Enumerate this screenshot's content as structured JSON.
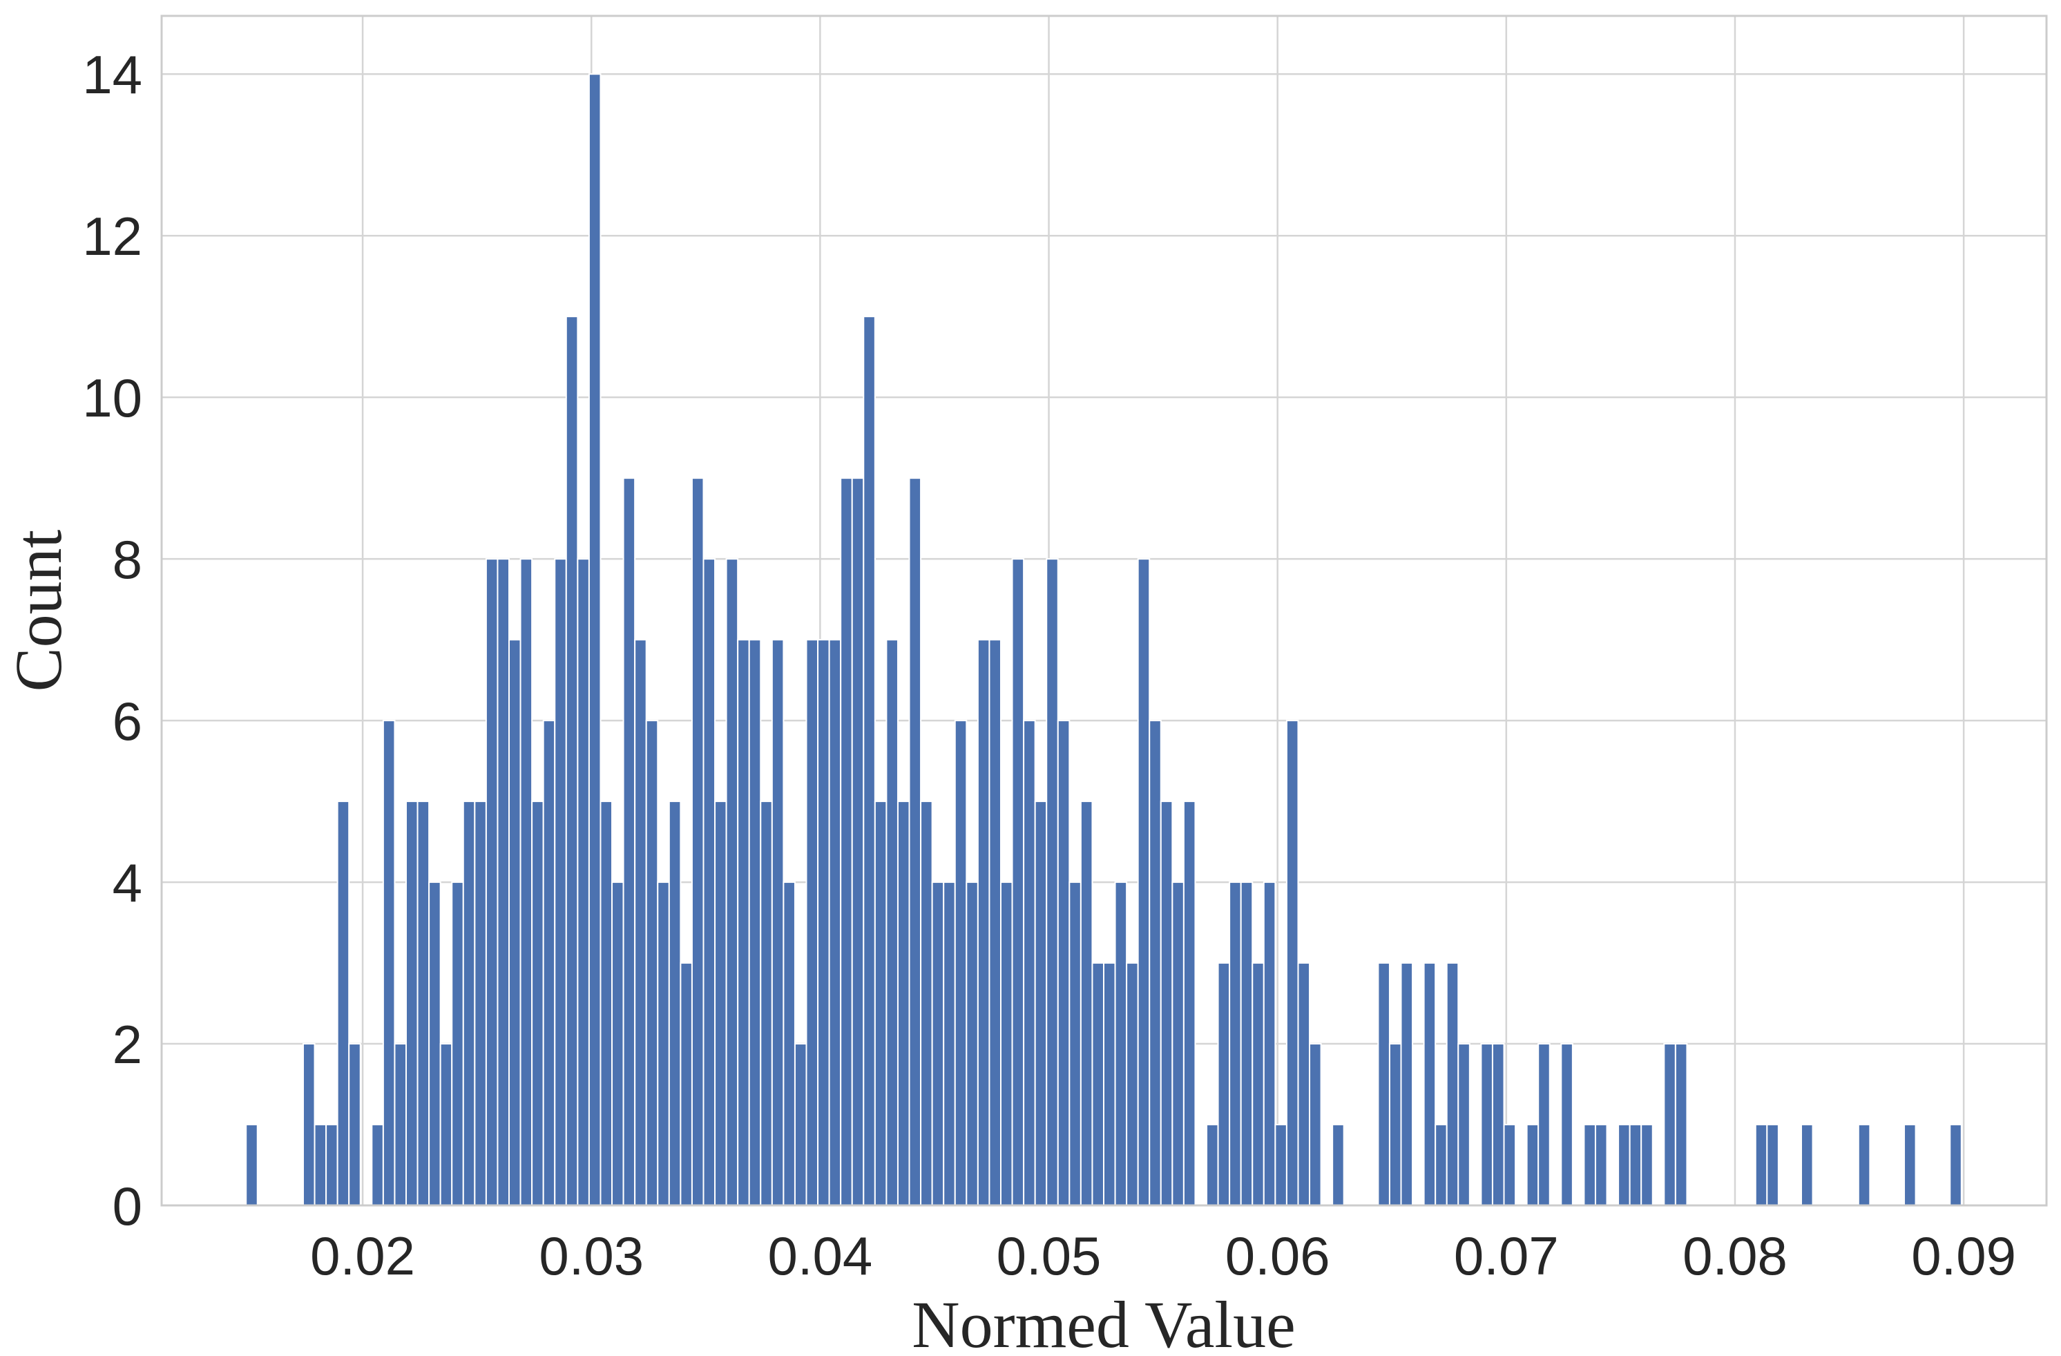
{
  "chart_data": {
    "type": "histogram",
    "xlabel": "Normed Value",
    "ylabel": "Count",
    "color": "#4c72b0",
    "grid": true,
    "xlim": [
      0.01121,
      0.09362
    ],
    "ylim": [
      0,
      14.72
    ],
    "xticks": [
      0.02,
      0.03,
      0.04,
      0.05,
      0.06,
      0.07,
      0.08,
      0.09
    ],
    "yticks": [
      0,
      2,
      4,
      6,
      8,
      10,
      12,
      14
    ],
    "bins": [
      0.0149,
      0.0154,
      0.0159,
      0.0164,
      0.0169,
      0.0174,
      0.0179,
      0.0184,
      0.0189,
      0.0194,
      0.0199,
      0.0204,
      0.0209,
      0.0214,
      0.0219,
      0.0224,
      0.0229,
      0.0234,
      0.0239,
      0.0244,
      0.0249,
      0.0254,
      0.0259,
      0.0264,
      0.0269,
      0.0274,
      0.0279,
      0.0284,
      0.0289,
      0.0294,
      0.0299,
      0.0304,
      0.0309,
      0.0314,
      0.0319,
      0.0324,
      0.0329,
      0.0334,
      0.0339,
      0.0344,
      0.0349,
      0.0354,
      0.0359,
      0.0364,
      0.0369,
      0.0374,
      0.0379,
      0.0384,
      0.0389,
      0.0394,
      0.0399,
      0.0404,
      0.0409,
      0.0414,
      0.0419,
      0.0424,
      0.0429,
      0.0434,
      0.0439,
      0.0444,
      0.0449,
      0.0454,
      0.0459,
      0.0464,
      0.0469,
      0.0474,
      0.0479,
      0.0484,
      0.0489,
      0.0494,
      0.0499,
      0.0504,
      0.0509,
      0.0514,
      0.0519,
      0.0524,
      0.0529,
      0.0534,
      0.0539,
      0.0544,
      0.0549,
      0.0554,
      0.0559,
      0.0564,
      0.0569,
      0.0574,
      0.0579,
      0.0584,
      0.0589,
      0.0594,
      0.0599,
      0.0604,
      0.0609,
      0.0614,
      0.0619,
      0.0624,
      0.0629,
      0.0634,
      0.0639,
      0.0644,
      0.0649,
      0.0654,
      0.0659,
      0.0664,
      0.0669,
      0.0674,
      0.0679,
      0.0684,
      0.0689,
      0.0694,
      0.0699,
      0.0704,
      0.0709,
      0.0714,
      0.0719,
      0.0724,
      0.0729,
      0.0734,
      0.0739,
      0.0744,
      0.0749,
      0.0754,
      0.0759,
      0.0764,
      0.0769,
      0.0774,
      0.0779,
      0.0784,
      0.0789,
      0.0794,
      0.0799,
      0.0804,
      0.0809,
      0.0814,
      0.0819,
      0.0824,
      0.0829,
      0.0834,
      0.0839,
      0.0844,
      0.0849,
      0.0854,
      0.0859,
      0.0864,
      0.0869,
      0.0874,
      0.0879,
      0.0884,
      0.0889,
      0.0894,
      0.0899
    ],
    "counts": [
      1,
      0,
      0,
      0,
      0,
      2,
      1,
      1,
      5,
      2,
      0,
      1,
      6,
      2,
      5,
      5,
      4,
      2,
      4,
      5,
      5,
      8,
      8,
      7,
      8,
      5,
      6,
      8,
      11,
      8,
      14,
      5,
      4,
      9,
      7,
      6,
      4,
      5,
      3,
      9,
      8,
      5,
      8,
      7,
      7,
      5,
      7,
      4,
      2,
      7,
      7,
      7,
      9,
      9,
      11,
      5,
      7,
      5,
      9,
      5,
      4,
      4,
      6,
      4,
      7,
      7,
      4,
      8,
      6,
      5,
      8,
      6,
      4,
      5,
      3,
      3,
      4,
      3,
      8,
      6,
      5,
      4,
      5,
      0,
      1,
      3,
      4,
      4,
      3,
      4,
      1,
      6,
      3,
      2,
      0,
      1,
      0,
      0,
      0,
      3,
      2,
      3,
      0,
      3,
      1,
      3,
      2,
      0,
      2,
      2,
      1,
      0,
      1,
      2,
      0,
      2,
      0,
      1,
      1,
      0,
      1,
      1,
      1,
      0,
      2,
      2,
      0,
      0,
      0,
      0,
      0,
      0,
      1,
      1,
      0,
      0,
      1,
      0,
      0,
      0,
      0,
      1,
      0,
      0,
      0,
      1,
      0,
      0,
      0,
      1
    ]
  }
}
